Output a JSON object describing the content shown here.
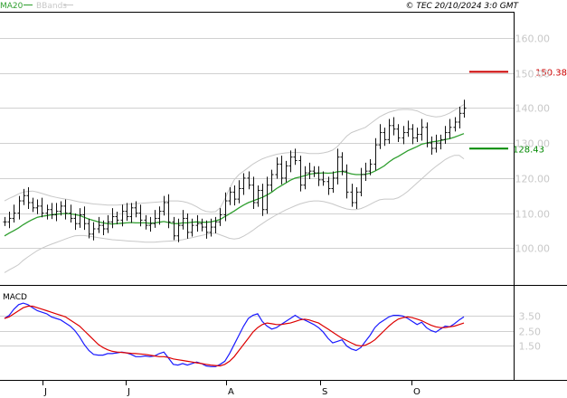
{
  "header": {
    "legend": [
      {
        "label": "MA20",
        "color": "#2e9e2e"
      },
      {
        "label": "BBands",
        "color": "#c8c8c8"
      }
    ],
    "copyright": "© TEC 20/10/2024 3:0 GMT"
  },
  "colors": {
    "candles": "#111111",
    "ma20": "#2e9e2e",
    "bbands": "#c8c8c8",
    "resistance": "#cc0000",
    "support": "#008800",
    "macd": "#1a1aff",
    "signal": "#dd0000",
    "grid": "#d0d0d0",
    "axis_text": "#c8c8c8"
  },
  "chart_data": [
    {
      "type": "ohlc",
      "y_ticks": [
        "100.00",
        "110.00",
        "120.00",
        "130.00",
        "140.00",
        "150.00",
        "160.00"
      ],
      "ylim": [
        90,
        167
      ],
      "x_labels": [
        "J",
        "J",
        "A",
        "S",
        "O"
      ],
      "levels": [
        {
          "name": "resistance",
          "value": 150.38,
          "label": "150.38"
        },
        {
          "name": "support",
          "value": 128.43,
          "label": "128.43"
        }
      ],
      "close": [
        107.5,
        108.5,
        110.0,
        113.5,
        115.0,
        113.0,
        111.5,
        112.0,
        110.0,
        111.0,
        109.5,
        110.5,
        112.0,
        110.0,
        108.5,
        107.0,
        109.5,
        107.0,
        104.0,
        105.5,
        106.5,
        105.5,
        107.5,
        109.0,
        108.0,
        110.5,
        109.0,
        111.5,
        110.0,
        108.0,
        106.5,
        107.0,
        108.5,
        110.5,
        113.0,
        107.5,
        103.5,
        106.5,
        108.5,
        104.5,
        106.5,
        107.0,
        106.0,
        104.5,
        106.0,
        107.5,
        109.5,
        113.5,
        116.0,
        114.0,
        117.0,
        120.0,
        118.0,
        113.0,
        116.5,
        111.0,
        118.0,
        121.0,
        124.0,
        120.0,
        123.5,
        126.0,
        125.0,
        118.0,
        121.5,
        122.0,
        121.5,
        119.5,
        119.0,
        117.0,
        120.0,
        126.0,
        122.0,
        116.0,
        113.0,
        116.0,
        121.0,
        122.0,
        124.0,
        129.5,
        133.0,
        131.0,
        135.0,
        134.0,
        131.5,
        133.0,
        134.0,
        131.5,
        132.5,
        134.5,
        130.0,
        128.5,
        130.0,
        131.0,
        133.0,
        134.5,
        136.0,
        138.5,
        140.0
      ],
      "ma20": [
        103.5,
        104.3,
        105.0,
        105.8,
        106.7,
        107.5,
        108.2,
        108.8,
        109.1,
        109.3,
        109.5,
        109.7,
        109.8,
        109.9,
        109.8,
        109.6,
        109.3,
        108.8,
        108.3,
        107.9,
        107.5,
        107.2,
        107.0,
        106.9,
        107.0,
        107.1,
        107.2,
        107.3,
        107.2,
        107.2,
        107.2,
        107.1,
        107.2,
        107.4,
        107.6,
        107.3,
        107.0,
        107.0,
        107.2,
        107.2,
        107.4,
        107.5,
        107.4,
        107.4,
        107.5,
        107.8,
        108.2,
        109.0,
        109.8,
        110.6,
        111.5,
        112.3,
        113.0,
        113.5,
        114.0,
        114.5,
        115.2,
        116.0,
        117.0,
        117.8,
        118.6,
        119.4,
        120.0,
        120.3,
        120.7,
        121.1,
        121.3,
        121.4,
        121.5,
        121.4,
        121.5,
        121.8,
        121.9,
        121.6,
        121.2,
        121.0,
        121.0,
        121.1,
        121.4,
        122.0,
        122.7,
        123.5,
        124.6,
        125.5,
        126.2,
        127.0,
        127.8,
        128.4,
        129.0,
        129.7,
        130.0,
        130.3,
        130.5,
        130.7,
        131.0,
        131.3,
        131.7,
        132.2,
        132.7
      ],
      "bb_upper": [
        113.5,
        114.2,
        114.8,
        115.5,
        116.0,
        116.2,
        116.3,
        116.0,
        115.6,
        115.2,
        114.8,
        114.5,
        114.2,
        114.0,
        113.8,
        113.5,
        113.2,
        113.0,
        112.8,
        112.6,
        112.5,
        112.4,
        112.3,
        112.3,
        112.3,
        112.4,
        112.5,
        112.6,
        112.7,
        112.8,
        112.9,
        113.0,
        113.1,
        113.2,
        113.3,
        113.5,
        113.5,
        113.5,
        113.3,
        113.0,
        112.5,
        111.8,
        111.0,
        110.5,
        110.3,
        110.4,
        111.5,
        114.0,
        117.0,
        119.5,
        121.0,
        122.0,
        123.0,
        124.0,
        124.8,
        125.5,
        126.0,
        126.4,
        126.8,
        127.0,
        127.2,
        127.3,
        127.3,
        127.3,
        127.2,
        127.0,
        127.0,
        127.0,
        127.2,
        127.5,
        128.0,
        129.0,
        130.5,
        132.0,
        133.0,
        133.5,
        134.0,
        134.5,
        135.5,
        136.5,
        137.5,
        138.2,
        138.8,
        139.2,
        139.5,
        139.6,
        139.6,
        139.5,
        139.2,
        138.6,
        138.0,
        137.7,
        137.5,
        137.6,
        138.0,
        138.6,
        139.4,
        140.2,
        141.0
      ],
      "bb_lower": [
        93.0,
        93.8,
        94.5,
        95.3,
        96.5,
        97.5,
        98.4,
        99.3,
        100.0,
        100.6,
        101.1,
        101.6,
        102.1,
        102.6,
        103.1,
        103.5,
        103.6,
        103.6,
        103.4,
        103.2,
        103.0,
        102.8,
        102.6,
        102.4,
        102.3,
        102.2,
        102.1,
        102.0,
        101.9,
        101.8,
        101.7,
        101.7,
        101.7,
        101.8,
        101.9,
        102.0,
        102.1,
        102.2,
        102.4,
        102.7,
        103.0,
        103.3,
        103.6,
        103.9,
        104.2,
        104.3,
        103.8,
        103.3,
        102.8,
        102.6,
        102.8,
        103.4,
        104.2,
        105.1,
        106.1,
        107.0,
        107.9,
        108.7,
        109.5,
        110.2,
        110.9,
        111.5,
        112.1,
        112.6,
        113.0,
        113.3,
        113.5,
        113.5,
        113.3,
        113.0,
        112.6,
        112.1,
        111.6,
        111.2,
        111.0,
        111.0,
        111.3,
        111.8,
        112.5,
        113.2,
        113.8,
        114.0,
        114.0,
        114.0,
        114.4,
        115.2,
        116.2,
        117.4,
        118.6,
        119.8,
        121.0,
        122.2,
        123.3,
        124.3,
        125.3,
        126.0,
        126.5,
        126.5,
        125.5
      ]
    },
    {
      "type": "line",
      "title": "MACD",
      "y_ticks": [
        "1.50",
        "2.50",
        "3.50"
      ],
      "ylim": [
        -0.6,
        4.6
      ],
      "series": [
        {
          "name": "macd",
          "values": [
            3.3,
            3.5,
            3.9,
            4.2,
            4.3,
            4.2,
            4.0,
            3.8,
            3.7,
            3.6,
            3.4,
            3.3,
            3.2,
            3.0,
            2.8,
            2.5,
            2.1,
            1.6,
            1.2,
            0.95,
            0.9,
            0.9,
            1.0,
            1.0,
            1.05,
            1.1,
            1.05,
            0.95,
            0.8,
            0.8,
            0.85,
            0.8,
            0.85,
            1.0,
            1.1,
            0.7,
            0.3,
            0.25,
            0.35,
            0.25,
            0.35,
            0.45,
            0.35,
            0.2,
            0.15,
            0.15,
            0.3,
            0.5,
            1.0,
            1.6,
            2.2,
            2.8,
            3.3,
            3.5,
            3.6,
            3.1,
            2.8,
            2.6,
            2.7,
            2.9,
            3.1,
            3.3,
            3.5,
            3.3,
            3.2,
            3.05,
            2.9,
            2.7,
            2.4,
            2.0,
            1.7,
            1.8,
            1.9,
            1.5,
            1.3,
            1.2,
            1.4,
            1.8,
            2.2,
            2.7,
            3.0,
            3.2,
            3.4,
            3.5,
            3.5,
            3.45,
            3.3,
            3.1,
            2.9,
            3.05,
            2.7,
            2.5,
            2.4,
            2.6,
            2.8,
            2.75,
            2.95,
            3.2,
            3.4
          ]
        },
        {
          "name": "signal",
          "values": [
            3.3,
            3.4,
            3.6,
            3.8,
            4.0,
            4.1,
            4.1,
            4.0,
            3.9,
            3.8,
            3.7,
            3.6,
            3.5,
            3.4,
            3.2,
            3.0,
            2.8,
            2.5,
            2.2,
            1.9,
            1.6,
            1.4,
            1.25,
            1.15,
            1.1,
            1.08,
            1.05,
            1.02,
            1.0,
            0.98,
            0.95,
            0.9,
            0.85,
            0.8,
            0.8,
            0.75,
            0.65,
            0.6,
            0.55,
            0.5,
            0.45,
            0.4,
            0.35,
            0.3,
            0.25,
            0.22,
            0.2,
            0.3,
            0.5,
            0.8,
            1.2,
            1.6,
            2.0,
            2.4,
            2.7,
            2.9,
            3.0,
            2.95,
            2.9,
            2.9,
            2.95,
            3.0,
            3.1,
            3.2,
            3.25,
            3.2,
            3.1,
            3.0,
            2.8,
            2.6,
            2.4,
            2.2,
            2.0,
            1.85,
            1.7,
            1.55,
            1.5,
            1.55,
            1.7,
            1.9,
            2.2,
            2.5,
            2.8,
            3.05,
            3.25,
            3.35,
            3.4,
            3.35,
            3.25,
            3.15,
            3.0,
            2.85,
            2.75,
            2.7,
            2.7,
            2.75,
            2.8,
            2.9,
            3.0
          ]
        }
      ]
    }
  ]
}
